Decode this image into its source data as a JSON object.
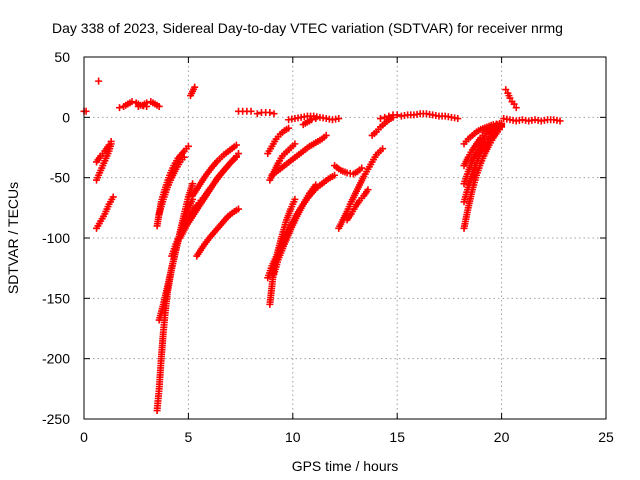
{
  "chart_data": {
    "type": "scatter",
    "title": "Day 338 of 2023, Sidereal Day-to-day VTEC variation (SDTVAR) for receiver nrmg",
    "xlabel": "GPS time / hours",
    "ylabel": "SDTVAR / TECUs",
    "xlim": [
      0,
      25
    ],
    "ylim": [
      -250,
      50
    ],
    "xticks": [
      0,
      5,
      10,
      15,
      20,
      25
    ],
    "yticks": [
      50,
      0,
      -50,
      -100,
      -150,
      -200,
      -250
    ],
    "grid": true,
    "marker": "+",
    "color": "#ff0000",
    "series": [
      {
        "name": "s01",
        "x": [
          0.0,
          0.1
        ],
        "y": [
          5,
          5
        ]
      },
      {
        "name": "s02",
        "x": [
          0.7
        ],
        "y": [
          30
        ]
      },
      {
        "name": "s03",
        "x": [
          0.6,
          0.8,
          1.0,
          1.2,
          1.3
        ],
        "y": [
          -52,
          -44,
          -36,
          -28,
          -22
        ]
      },
      {
        "name": "s04",
        "x": [
          0.6,
          0.8,
          1.0,
          1.2,
          1.3
        ],
        "y": [
          -37,
          -32,
          -28,
          -23,
          -20
        ]
      },
      {
        "name": "s05",
        "x": [
          0.6,
          0.8,
          1.0,
          1.2,
          1.4
        ],
        "y": [
          -92,
          -86,
          -80,
          -72,
          -66
        ]
      },
      {
        "name": "s06",
        "x": [
          1.7,
          1.9,
          2.1,
          2.3,
          2.5,
          2.7,
          3.0
        ],
        "y": [
          8,
          9,
          11,
          13,
          12,
          10,
          9
        ]
      },
      {
        "name": "s07",
        "x": [
          2.6,
          2.8,
          3.0,
          3.2,
          3.4,
          3.6
        ],
        "y": [
          9,
          10,
          12,
          13,
          11,
          9
        ]
      },
      {
        "name": "s08",
        "x": [
          3.5,
          3.7,
          3.9,
          4.1,
          4.3,
          4.5,
          4.8,
          5.0
        ],
        "y": [
          -90,
          -70,
          -58,
          -48,
          -40,
          -34,
          -28,
          -24
        ]
      },
      {
        "name": "s09",
        "x": [
          3.6,
          3.8,
          4.0,
          4.2,
          4.4,
          4.6,
          4.8
        ],
        "y": [
          -80,
          -68,
          -58,
          -50,
          -43,
          -37,
          -33
        ]
      },
      {
        "name": "s10",
        "x": [
          3.5,
          3.6,
          3.7,
          3.8,
          3.9,
          4.0,
          4.2,
          4.4,
          4.6,
          4.8,
          5.0,
          5.2
        ],
        "y": [
          -243,
          -225,
          -200,
          -178,
          -160,
          -145,
          -125,
          -110,
          -95,
          -80,
          -66,
          -55
        ]
      },
      {
        "name": "s11",
        "x": [
          3.6,
          3.8,
          4.0,
          4.2,
          4.4,
          4.6,
          4.8,
          5.0,
          5.2
        ],
        "y": [
          -168,
          -155,
          -140,
          -125,
          -110,
          -97,
          -86,
          -75,
          -68
        ]
      },
      {
        "name": "s12",
        "x": [
          4.2,
          4.4,
          4.6,
          4.8,
          5.0,
          5.2,
          5.4,
          5.6,
          5.8,
          6.0
        ],
        "y": [
          -115,
          -105,
          -97,
          -90,
          -84,
          -78,
          -73,
          -69,
          -65,
          -60
        ]
      },
      {
        "name": "s13",
        "x": [
          5.1,
          5.3
        ],
        "y": [
          18,
          25
        ]
      },
      {
        "name": "s14",
        "x": [
          4.6,
          4.9,
          5.2,
          5.5,
          5.8,
          6.1,
          6.4,
          6.7,
          7.0,
          7.3
        ],
        "y": [
          -100,
          -90,
          -82,
          -74,
          -66,
          -58,
          -50,
          -44,
          -38,
          -33
        ]
      },
      {
        "name": "s15",
        "x": [
          5.2,
          5.5,
          5.8,
          6.1,
          6.4,
          6.7,
          7.0,
          7.3
        ],
        "y": [
          -65,
          -57,
          -49,
          -42,
          -36,
          -31,
          -27,
          -23
        ]
      },
      {
        "name": "s16",
        "x": [
          5.4,
          5.7,
          6.0,
          6.3,
          6.6,
          6.9,
          7.2,
          7.4
        ],
        "y": [
          -75,
          -68,
          -60,
          -53,
          -46,
          -40,
          -34,
          -30
        ]
      },
      {
        "name": "s17",
        "x": [
          5.4,
          5.7,
          6.0,
          6.3,
          6.6,
          6.9,
          7.2,
          7.4
        ],
        "y": [
          -115,
          -107,
          -100,
          -94,
          -88,
          -82,
          -78,
          -76
        ]
      },
      {
        "name": "s18",
        "x": [
          7.4,
          7.6,
          7.8,
          8.0
        ],
        "y": [
          5,
          5,
          5,
          5
        ]
      },
      {
        "name": "s19",
        "x": [
          8.3,
          8.5,
          8.7,
          8.9,
          9.1
        ],
        "y": [
          3,
          4,
          4,
          4,
          3
        ]
      },
      {
        "name": "s20",
        "x": [
          8.9,
          9.1,
          9.3,
          9.5,
          9.8,
          10.1
        ],
        "y": [
          -52,
          -45,
          -38,
          -32,
          -27,
          -22
        ]
      },
      {
        "name": "s21",
        "x": [
          8.9,
          9.0,
          9.1,
          9.3,
          9.5,
          9.7,
          9.9,
          10.1
        ],
        "y": [
          -155,
          -140,
          -125,
          -110,
          -97,
          -85,
          -76,
          -68
        ]
      },
      {
        "name": "s22",
        "x": [
          9.1,
          9.3,
          9.6,
          9.9,
          10.2,
          10.5,
          10.8,
          11.1
        ],
        "y": [
          -130,
          -118,
          -105,
          -93,
          -82,
          -72,
          -63,
          -56
        ]
      },
      {
        "name": "s23",
        "x": [
          8.8,
          9.0,
          9.3,
          9.6,
          9.9,
          10.2,
          10.5,
          10.8,
          11.1,
          11.4,
          11.7,
          12.0
        ],
        "y": [
          -133,
          -123,
          -112,
          -100,
          -90,
          -80,
          -72,
          -65,
          -59,
          -55,
          -51,
          -48
        ]
      },
      {
        "name": "s24",
        "x": [
          8.8,
          9.0,
          9.2,
          9.4,
          9.6,
          9.8
        ],
        "y": [
          -30,
          -24,
          -18,
          -14,
          -11,
          -9
        ]
      },
      {
        "name": "s25",
        "x": [
          9.0,
          9.3,
          9.6,
          9.9,
          10.2,
          10.5,
          10.8,
          11.1,
          11.4,
          11.6
        ],
        "y": [
          -48,
          -44,
          -40,
          -36,
          -32,
          -28,
          -24,
          -21,
          -18,
          -15
        ]
      },
      {
        "name": "s26",
        "x": [
          9.8,
          10.1,
          10.4,
          10.7,
          11.0,
          11.3,
          11.6,
          11.9,
          12.2
        ],
        "y": [
          -2,
          -1,
          0,
          1,
          1,
          0,
          -1,
          -2,
          -1
        ]
      },
      {
        "name": "s27",
        "x": [
          10.5,
          10.7,
          10.9,
          11.1
        ],
        "y": [
          -6,
          -4,
          -2,
          -1
        ]
      },
      {
        "name": "s28",
        "x": [
          12.0,
          12.3,
          12.6,
          12.9,
          13.1,
          13.3
        ],
        "y": [
          -40,
          -44,
          -46,
          -47,
          -45,
          -42
        ]
      },
      {
        "name": "s29",
        "x": [
          12.2,
          12.4,
          12.6,
          12.8,
          13.0,
          13.2,
          13.4,
          13.6,
          13.8,
          14.0,
          14.3
        ],
        "y": [
          -92,
          -85,
          -78,
          -70,
          -63,
          -56,
          -49,
          -43,
          -37,
          -31,
          -26
        ]
      },
      {
        "name": "s30",
        "x": [
          12.6,
          12.8,
          13.0,
          13.2,
          13.4,
          13.6
        ],
        "y": [
          -85,
          -80,
          -74,
          -69,
          -65,
          -60
        ]
      },
      {
        "name": "s31",
        "x": [
          13.8,
          14.0,
          14.2,
          14.4,
          14.6,
          14.8
        ],
        "y": [
          -15,
          -12,
          -8,
          -5,
          -2,
          0
        ]
      },
      {
        "name": "s32",
        "x": [
          14.2,
          14.4,
          14.6,
          14.8,
          15.0
        ],
        "y": [
          -1,
          0,
          1,
          2,
          2
        ]
      },
      {
        "name": "s33",
        "x": [
          15.2,
          15.5,
          15.8,
          16.1,
          16.4,
          16.7,
          17.0,
          17.3,
          17.6,
          17.9
        ],
        "y": [
          1,
          2,
          2,
          3,
          3,
          2,
          1,
          1,
          0,
          -1
        ]
      },
      {
        "name": "s34",
        "x": [
          18.2,
          18.4,
          18.6,
          18.8,
          19.0,
          19.2,
          19.4,
          19.6,
          19.8,
          20.0
        ],
        "y": [
          -92,
          -75,
          -60,
          -48,
          -38,
          -30,
          -23,
          -17,
          -12,
          -8
        ]
      },
      {
        "name": "s35",
        "x": [
          18.2,
          18.4,
          18.6,
          18.8,
          19.0,
          19.2,
          19.4,
          19.6,
          19.8,
          20.0
        ],
        "y": [
          -70,
          -58,
          -47,
          -38,
          -30,
          -24,
          -18,
          -13,
          -10,
          -7
        ]
      },
      {
        "name": "s36",
        "x": [
          18.2,
          18.4,
          18.6,
          18.8,
          19.0,
          19.2,
          19.4,
          19.6,
          19.8,
          20.0
        ],
        "y": [
          -55,
          -45,
          -36,
          -29,
          -23,
          -18,
          -14,
          -11,
          -8,
          -6
        ]
      },
      {
        "name": "s37",
        "x": [
          18.2,
          18.4,
          18.6,
          18.8,
          19.0,
          19.2,
          19.4,
          19.6,
          19.8,
          20.0
        ],
        "y": [
          -40,
          -33,
          -27,
          -22,
          -17,
          -13,
          -10,
          -8,
          -6,
          -5
        ]
      },
      {
        "name": "s38",
        "x": [
          18.2,
          18.4,
          18.6,
          18.8,
          19.0,
          19.3,
          19.6,
          19.9
        ],
        "y": [
          -22,
          -18,
          -15,
          -12,
          -10,
          -8,
          -6,
          -5
        ]
      },
      {
        "name": "s39",
        "x": [
          20.2,
          20.3,
          20.4,
          20.5,
          20.6,
          20.7
        ],
        "y": [
          23,
          20,
          16,
          13,
          11,
          8
        ]
      },
      {
        "name": "s40",
        "x": [
          20.1,
          20.4,
          20.7,
          21.0,
          21.3,
          21.6,
          21.9,
          22.2,
          22.5,
          22.8
        ],
        "y": [
          -1,
          -2,
          -3,
          -2,
          -3,
          -2,
          -3,
          -2,
          -2,
          -3
        ]
      }
    ]
  }
}
